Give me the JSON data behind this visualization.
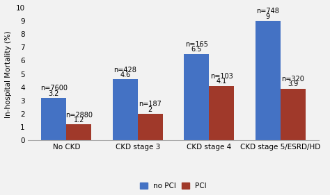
{
  "categories": [
    "No CKD",
    "CKD stage 3",
    "CKD stage 4",
    "CKD stage 5/ESRD/HD"
  ],
  "no_pci_values": [
    3.2,
    4.6,
    6.5,
    9.0
  ],
  "pci_values": [
    1.2,
    2.0,
    4.1,
    3.9
  ],
  "no_pci_labels": [
    "3.2",
    "4.6",
    "6.5",
    "9"
  ],
  "pci_labels": [
    "1.2",
    "2",
    "4.1",
    "3.9"
  ],
  "no_pci_n": [
    "n=7600",
    "n=428",
    "n=165",
    "n=748"
  ],
  "pci_n": [
    "n=2880",
    "n=187",
    "n=103",
    "n=320"
  ],
  "no_pci_color": "#4472C4",
  "pci_color": "#A0392A",
  "ylabel": "In-hospital Mortality (%)",
  "ylim": [
    0,
    10
  ],
  "yticks": [
    0,
    1,
    2,
    3,
    4,
    5,
    6,
    7,
    8,
    9,
    10
  ],
  "legend_no_pci": "no PCI",
  "legend_pci": "PCI",
  "bar_width": 0.35,
  "background_color": "#f2f2f2",
  "label_fontsize": 7.5,
  "tick_fontsize": 7.5,
  "annotation_fontsize": 7.0
}
